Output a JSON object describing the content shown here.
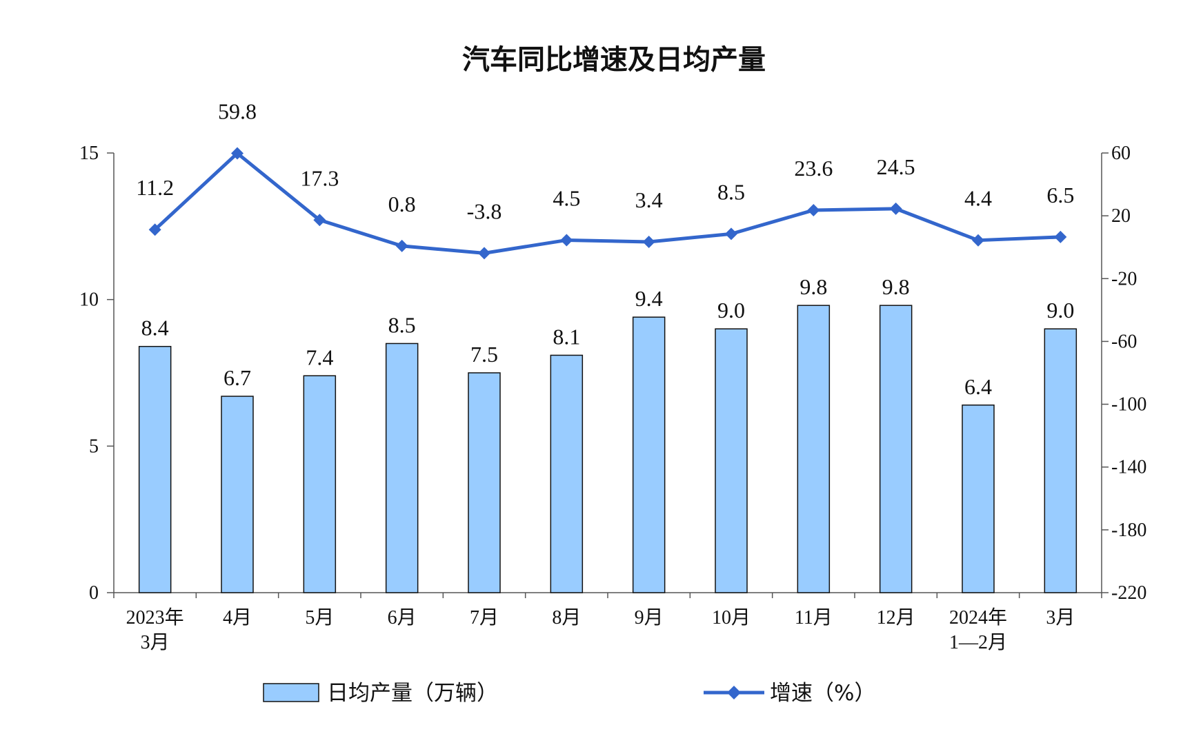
{
  "chart_data": {
    "type": "bar",
    "title": "汽车同比增速及日均产量",
    "categories": [
      [
        "2023年",
        "3月"
      ],
      [
        "4月"
      ],
      [
        "5月"
      ],
      [
        "6月"
      ],
      [
        "7月"
      ],
      [
        "8月"
      ],
      [
        "9月"
      ],
      [
        "10月"
      ],
      [
        "11月"
      ],
      [
        "12月"
      ],
      [
        "2024年",
        "1—2月"
      ],
      [
        "3月"
      ]
    ],
    "series": [
      {
        "name": "日均产量（万辆）",
        "type": "bar",
        "axis": "left",
        "color": "#99CCFF",
        "values": [
          8.4,
          6.7,
          7.4,
          8.5,
          7.5,
          8.1,
          9.4,
          9.0,
          9.8,
          9.8,
          6.4,
          9.0
        ],
        "labels": [
          "8.4",
          "6.7",
          "7.4",
          "8.5",
          "7.5",
          "8.1",
          "9.4",
          "9.0",
          "9.8",
          "9.8",
          "6.4",
          "9.0"
        ]
      },
      {
        "name": "增速（%）",
        "type": "line",
        "axis": "right",
        "color": "#3366CC",
        "values": [
          11.2,
          59.8,
          17.3,
          0.8,
          -3.8,
          4.5,
          3.4,
          8.5,
          23.6,
          24.5,
          4.4,
          6.5
        ],
        "labels": [
          "11.2",
          "59.8",
          "17.3",
          "0.8",
          "-3.8",
          "4.5",
          "3.4",
          "8.5",
          "23.6",
          "24.5",
          "4.4",
          "6.5"
        ]
      }
    ],
    "y_left": {
      "min": 0,
      "max": 15,
      "ticks": [
        "0",
        "5",
        "10",
        "15"
      ]
    },
    "y_right": {
      "min": -220,
      "max": 60,
      "ticks": [
        "-220",
        "-180",
        "-140",
        "-100",
        "-60",
        "-20",
        "20",
        "60"
      ]
    },
    "legend_position": "bottom",
    "grid": false
  }
}
